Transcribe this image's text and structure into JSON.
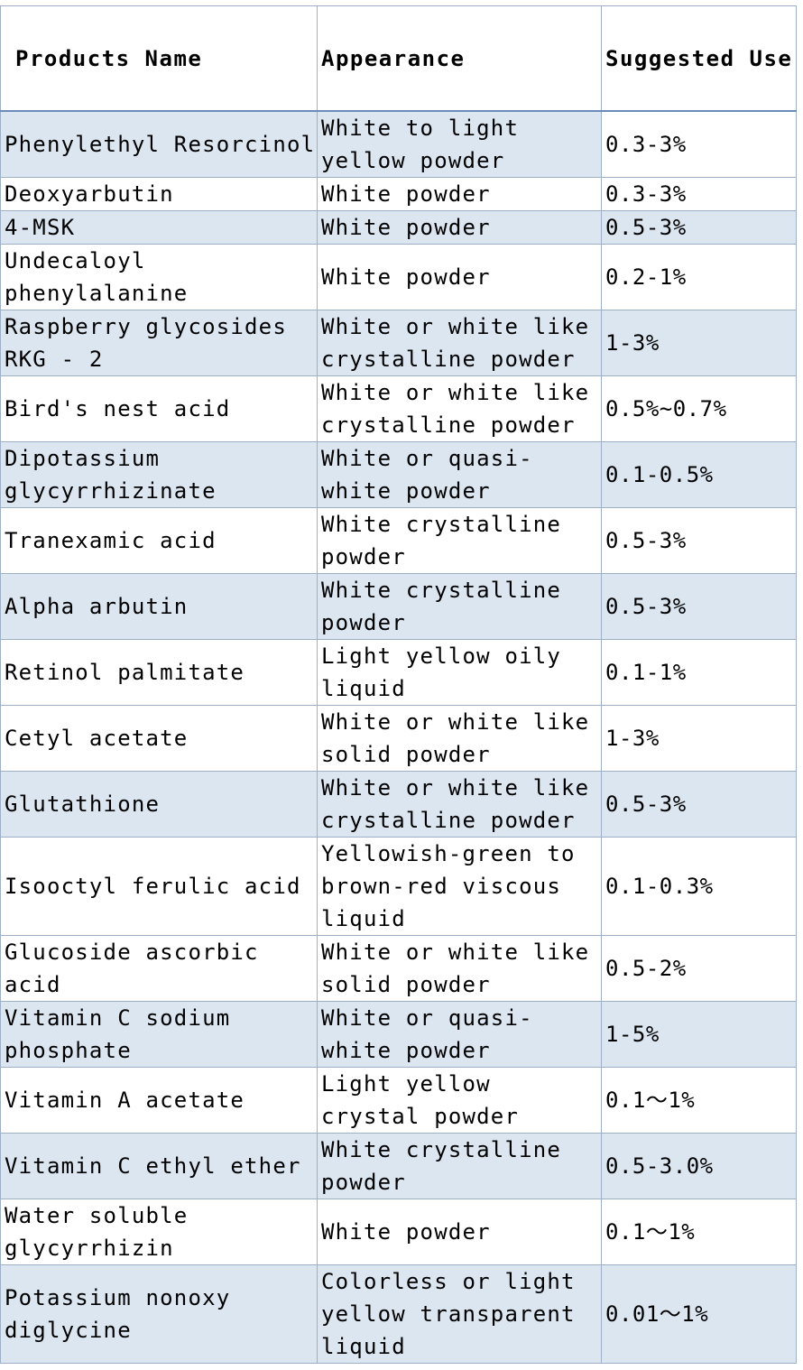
{
  "headers": {
    "name": "Products Name",
    "appearance": "Appearance",
    "use": "Suggested Use"
  },
  "rows": [
    {
      "name": "Phenylethyl Resorcinol",
      "appearance": "White to light yellow powder",
      "use": "0.3-3%"
    },
    {
      "name": "Deoxyarbutin",
      "appearance": "White powder",
      "use": "0.3-3%"
    },
    {
      "name": "4-MSK",
      "appearance": "White powder",
      "use": "0.5-3%"
    },
    {
      "name": "Undecaloyl phenylalanine",
      "appearance": "White powder",
      "use": "0.2-1%"
    },
    {
      "name": "Raspberry glycosides RKG - 2",
      "appearance": "White or white like crystalline powder",
      "use": "1-3%"
    },
    {
      "name": "Bird's nest acid",
      "appearance": "White or white like crystalline powder",
      "use": "0.5%~0.7%"
    },
    {
      "name": "Dipotassium glycyrrhizinate",
      "appearance": "White or quasi-white powder",
      "use": "0.1-0.5%"
    },
    {
      "name": "Tranexamic acid",
      "appearance": "White crystalline powder",
      "use": "0.5-3%"
    },
    {
      "name": "Alpha arbutin",
      "appearance": "White crystalline powder",
      "use": "0.5-3%"
    },
    {
      "name": "Retinol palmitate",
      "appearance": "Light yellow oily liquid",
      "use": "0.1-1%"
    },
    {
      "name": "Cetyl acetate",
      "appearance": "White or white like solid powder",
      "use": "1-3%"
    },
    {
      "name": "Glutathione",
      "appearance": "White or white like crystalline powder",
      "use": "0.5-3%"
    },
    {
      "name": "Isooctyl ferulic acid",
      "appearance": "Yellowish-green to brown-red viscous liquid",
      "use": "0.1-0.3%"
    },
    {
      "name": "Glucoside ascorbic acid",
      "appearance": "White or white like solid powder",
      "use": "0.5-2%"
    },
    {
      "name": "Vitamin C sodium phosphate",
      "appearance": "White or quasi-white powder",
      "use": "1-5%"
    },
    {
      "name": "Vitamin A acetate",
      "appearance": "Light yellow crystal powder",
      "use": "0.1～1%"
    },
    {
      "name": "Vitamin C ethyl ether",
      "appearance": "White crystalline powder",
      "use": "0.5-3.0%"
    },
    {
      "name": "Water soluble glycyrrhizin",
      "appearance": "White powder",
      "use": "0.1～1%"
    },
    {
      "name": "Potassium nonoxy diglycine",
      "appearance": "Colorless or light yellow transparent liquid",
      "use": "0.01～1%"
    }
  ],
  "colors": {
    "shaded_row": "#dce6f1",
    "grid": "#9eb0c8"
  }
}
